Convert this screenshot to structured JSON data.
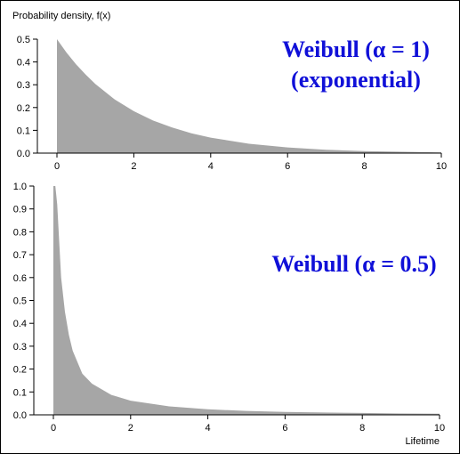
{
  "chart_data": [
    {
      "type": "area",
      "title": "",
      "ylabel": "Probability density, f(x)",
      "xlabel": "",
      "xlim": [
        0,
        10
      ],
      "ylim": [
        0,
        0.5
      ],
      "x_ticks": [
        "0",
        "2",
        "4",
        "6",
        "8",
        "10"
      ],
      "y_ticks": [
        "0.0",
        "0.1",
        "0.2",
        "0.3",
        "0.4",
        "0.5"
      ],
      "annotation_lines": [
        "Weibull (α = 1)",
        "(exponential)"
      ],
      "annotation_color": "#1010d8",
      "fill_color": "#a6a6a6",
      "series": [
        {
          "x": [
            0,
            0.25,
            0.5,
            0.75,
            1,
            1.5,
            2,
            2.5,
            3,
            3.5,
            4,
            5,
            6,
            7,
            8,
            9,
            10
          ],
          "values": [
            0.5,
            0.441,
            0.389,
            0.344,
            0.303,
            0.236,
            0.184,
            0.143,
            0.112,
            0.087,
            0.068,
            0.041,
            0.025,
            0.015,
            0.009,
            0.006,
            0.003
          ]
        }
      ]
    },
    {
      "type": "area",
      "title": "",
      "ylabel": "",
      "xlabel": "Lifetime",
      "xlim": [
        0,
        10
      ],
      "ylim": [
        0,
        1.0
      ],
      "x_ticks": [
        "0",
        "2",
        "4",
        "6",
        "8",
        "10"
      ],
      "y_ticks": [
        "0.0",
        "0.1",
        "0.2",
        "0.3",
        "0.4",
        "0.5",
        "0.6",
        "0.7",
        "0.8",
        "0.9",
        "1.0"
      ],
      "annotation_lines": [
        "Weibull (α = 0.5)"
      ],
      "annotation_color": "#1010d8",
      "fill_color": "#a6a6a6",
      "series": [
        {
          "x": [
            0,
            0.05,
            0.1,
            0.2,
            0.3,
            0.4,
            0.5,
            0.75,
            1,
            1.5,
            2,
            3,
            4,
            5,
            6,
            7,
            8,
            9,
            10
          ],
          "values": [
            1.0,
            1.0,
            0.92,
            0.6,
            0.45,
            0.35,
            0.28,
            0.18,
            0.136,
            0.087,
            0.062,
            0.037,
            0.024,
            0.017,
            0.013,
            0.01,
            0.008,
            0.006,
            0.005
          ]
        }
      ]
    }
  ]
}
